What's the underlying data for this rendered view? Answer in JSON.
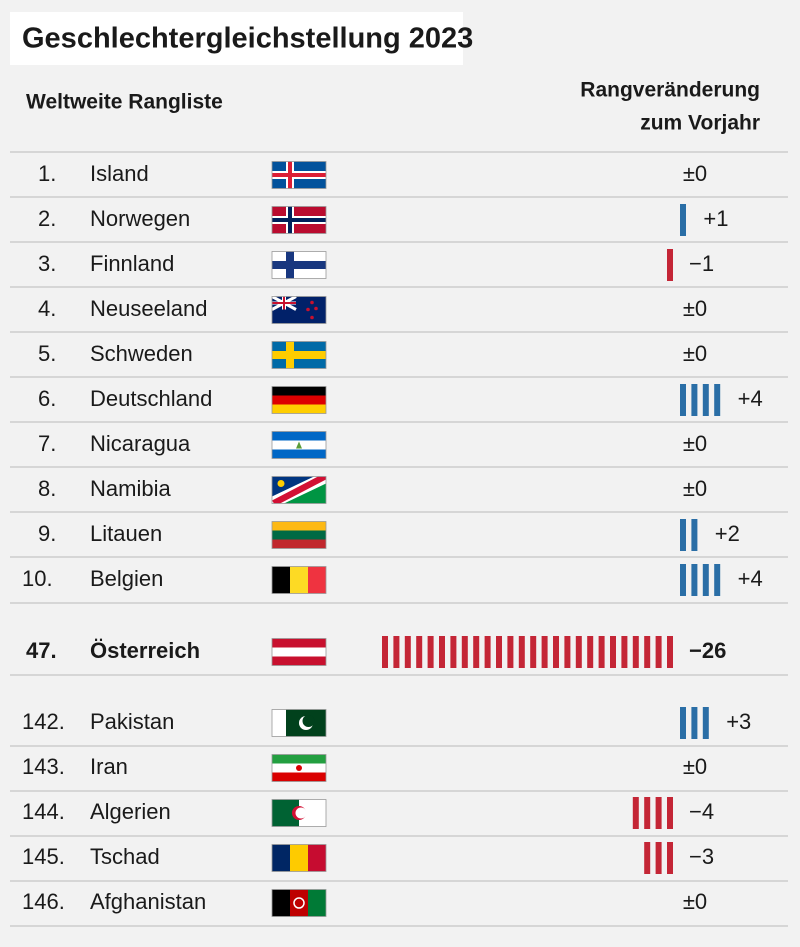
{
  "header": {
    "title": "Geschlechtergleichstellung 2023",
    "left": "Weltweite Rangliste",
    "right_line1": "Rangveränderung",
    "right_line2": "zum Vorjahr"
  },
  "rows": [
    {
      "rank": "1.",
      "country": "Island",
      "change": 0,
      "change_label": "±0"
    },
    {
      "rank": "2.",
      "country": "Norwegen",
      "change": 1,
      "change_label": "+1"
    },
    {
      "rank": "3.",
      "country": "Finnland",
      "change": -1,
      "change_label": "−1"
    },
    {
      "rank": "4.",
      "country": "Neuseeland",
      "change": 0,
      "change_label": "±0"
    },
    {
      "rank": "5.",
      "country": "Schweden",
      "change": 0,
      "change_label": "±0"
    },
    {
      "rank": "6.",
      "country": "Deutschland",
      "change": 4,
      "change_label": "+4"
    },
    {
      "rank": "7.",
      "country": "Nicaragua",
      "change": 0,
      "change_label": "±0"
    },
    {
      "rank": "8.",
      "country": "Namibia",
      "change": 0,
      "change_label": "±0"
    },
    {
      "rank": "9.",
      "country": "Litauen",
      "change": 2,
      "change_label": "+2"
    },
    {
      "rank": "10.",
      "country": "Belgien",
      "change": 4,
      "change_label": "+4"
    },
    {
      "rank": "47.",
      "country": "Österreich",
      "change": -26,
      "change_label": "−26"
    },
    {
      "rank": "142.",
      "country": "Pakistan",
      "change": 3,
      "change_label": "+3"
    },
    {
      "rank": "143.",
      "country": "Iran",
      "change": 0,
      "change_label": "±0"
    },
    {
      "rank": "144.",
      "country": "Algerien",
      "change": -4,
      "change_label": "−4"
    },
    {
      "rank": "145.",
      "country": "Tschad",
      "change": -3,
      "change_label": "−3"
    },
    {
      "rank": "146.",
      "country": "Afghanistan",
      "change": 0,
      "change_label": "±0"
    }
  ]
}
